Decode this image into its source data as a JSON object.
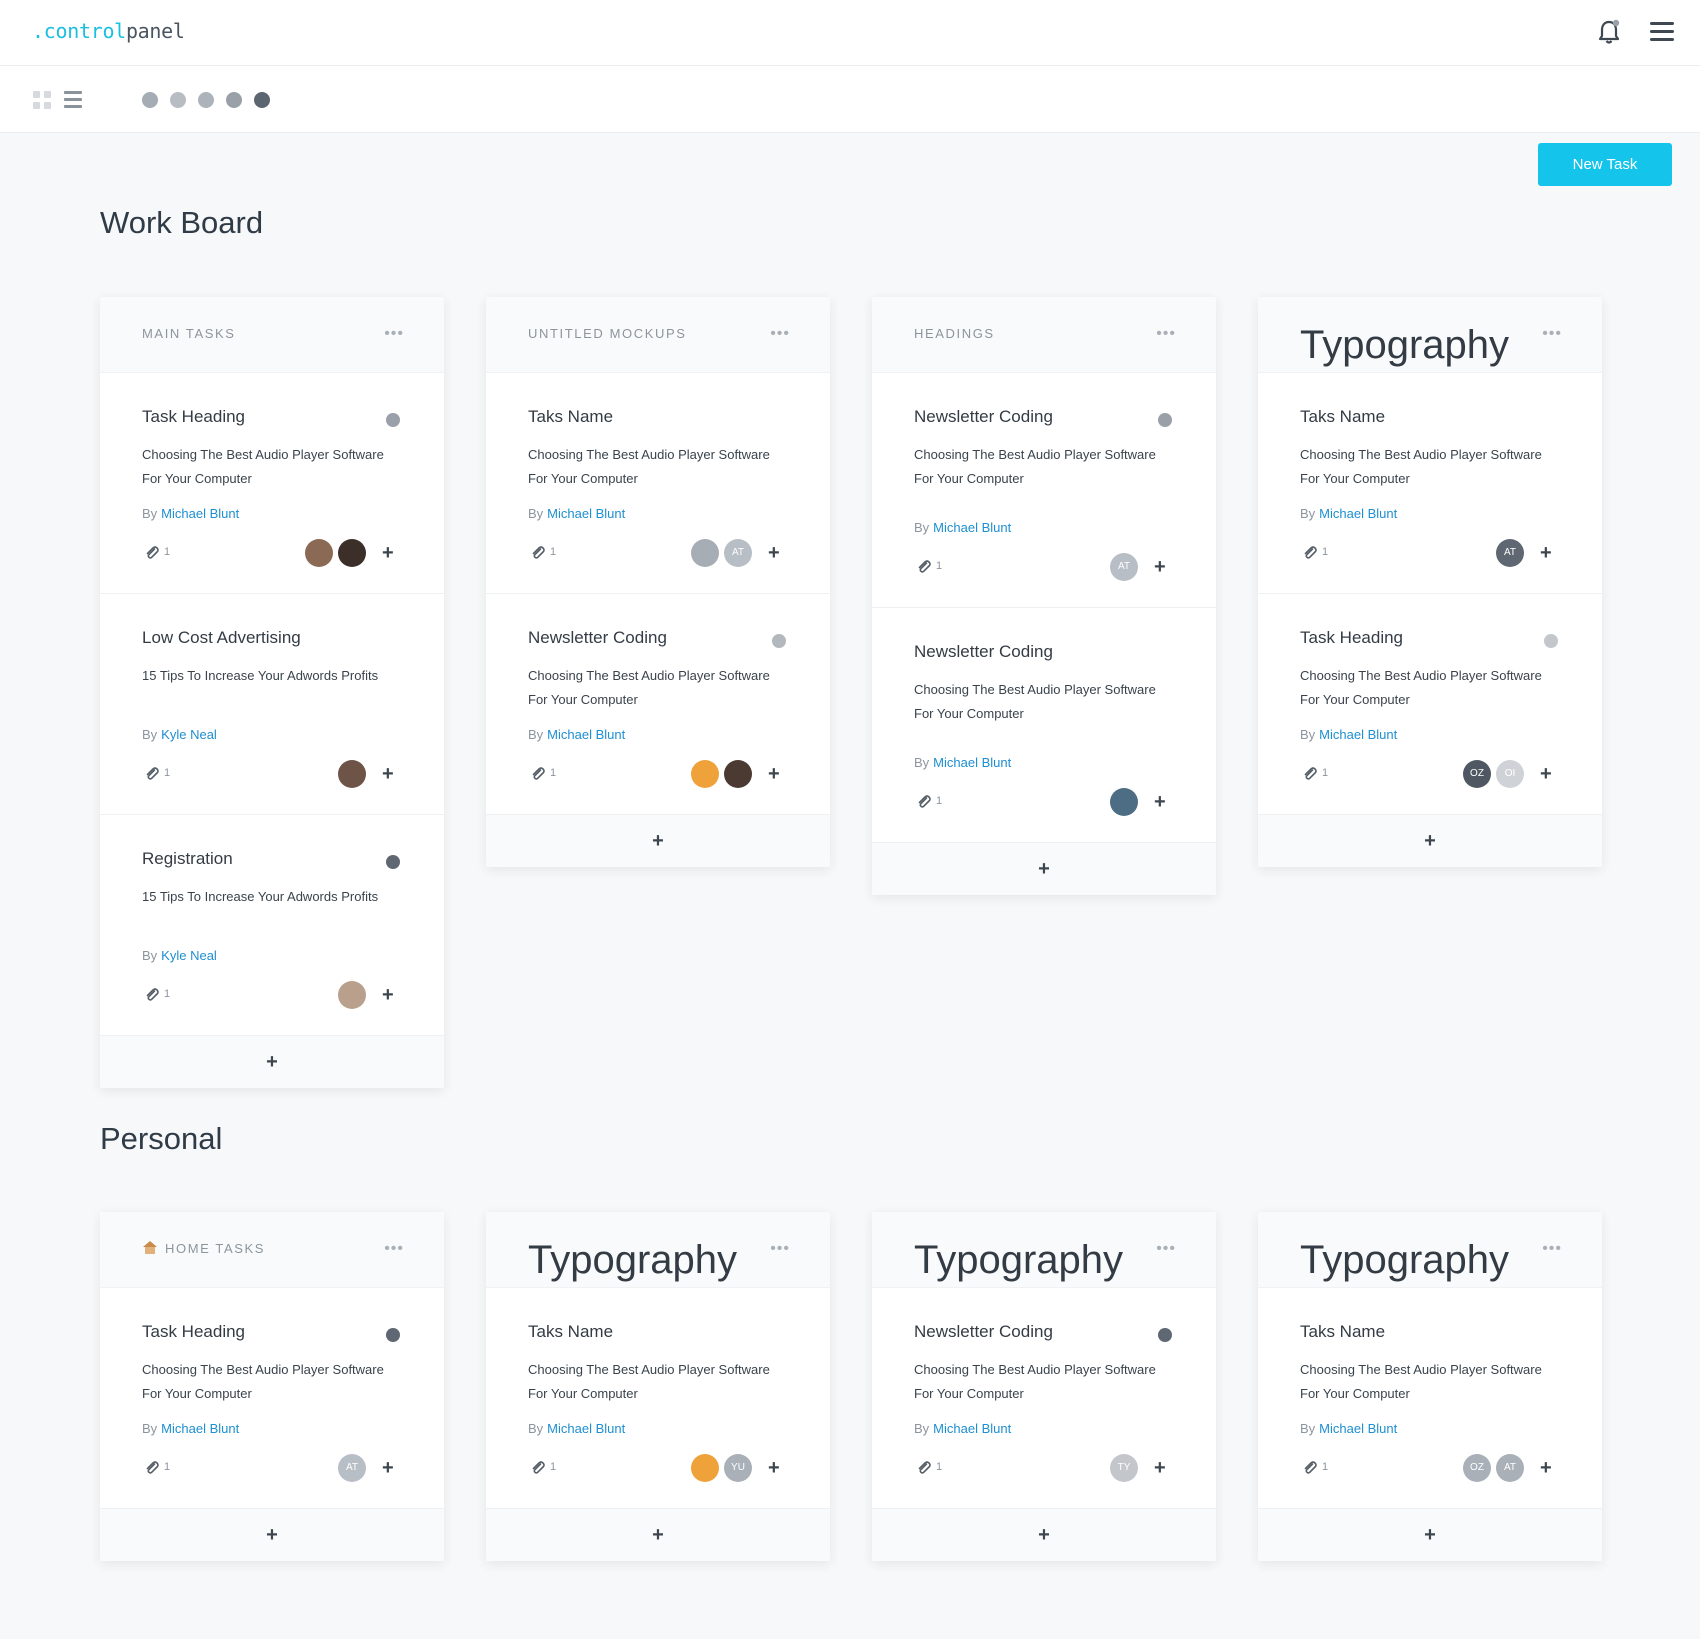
{
  "app": {
    "logo_prefix": ".control",
    "logo_suffix": "panel"
  },
  "icons": {
    "notifications": "bell-icon",
    "menu": "hamburger-icon",
    "grid_view": "grid-icon",
    "list_view": "list-icon",
    "attachment": "paperclip-icon",
    "home": "house-icon"
  },
  "toolbar": {
    "filter_dots": [
      "#a6acb3",
      "#b8bdc3",
      "#adb3ba",
      "#9aa0a8",
      "#5c6670"
    ],
    "new_task_label": "New Task"
  },
  "colors": {
    "accent": "#14c4ea",
    "link": "#1e8fd0"
  },
  "sections": [
    {
      "title": "Work Board",
      "columns": [
        {
          "title": "MAIN TASKS",
          "menu": "•••",
          "cards": [
            {
              "title": "Task Heading",
              "status": "#9aa0a7",
              "desc": "Choosing The Best Audio Player Software For Your Computer",
              "by": "By",
              "author": "Michael Blunt",
              "attachments": "1",
              "avatars": [
                {
                  "label": "",
                  "color": "#8a6a55"
                },
                {
                  "label": "",
                  "color": "#3c2e28"
                }
              ]
            },
            {
              "title": "Low Cost Advertising",
              "status": "",
              "desc": "15 Tips To Increase Your Adwords Profits",
              "by": "By",
              "author": "Kyle Neal",
              "attachments": "1",
              "avatars": [
                {
                  "label": "",
                  "color": "#6e5446"
                }
              ]
            },
            {
              "title": "Registration",
              "status": "#5f6872",
              "desc": "15 Tips To Increase Your Adwords Profits",
              "by": "By",
              "author": "Kyle Neal",
              "attachments": "1",
              "avatars": [
                {
                  "label": "",
                  "color": "#b9a08c"
                }
              ]
            }
          ],
          "add": "+"
        },
        {
          "title": "UNTITLED MOCKUPS",
          "menu": "•••",
          "cards": [
            {
              "title": "Taks Name",
              "status": "",
              "desc": "Choosing The Best Audio Player Software For Your Computer",
              "by": "By",
              "author": "Michael Blunt",
              "attachments": "1",
              "avatars": [
                {
                  "label": "",
                  "color": "#a7adb4"
                },
                {
                  "label": "AT",
                  "color": "#b8bec5"
                }
              ]
            },
            {
              "title": "Newsletter Coding",
              "status": "#b3b8be",
              "desc": "Choosing The Best Audio Player Software For Your Computer",
              "by": "By",
              "author": "Michael Blunt",
              "attachments": "1",
              "avatars": [
                {
                  "label": "",
                  "color": "#f0a23a"
                },
                {
                  "label": "",
                  "color": "#4a3a32"
                }
              ]
            }
          ],
          "add": "+"
        },
        {
          "title": "HEADINGS",
          "menu": "•••",
          "cards": [
            {
              "title": "Newsletter Coding",
              "status": "#9aa0a7",
              "desc": "Choosing The Best Audio Player Software For Your Computer",
              "by": "By",
              "author": "Michael Blunt",
              "attachments": "1",
              "avatars": [
                {
                  "label": "AT",
                  "color": "#b8bec5"
                }
              ]
            },
            {
              "title": "Newsletter Coding",
              "status": "",
              "desc": "Choosing The Best Audio Player Software For Your Computer",
              "by": "By",
              "author": "Michael Blunt",
              "attachments": "1",
              "avatars": [
                {
                  "label": "",
                  "color": "#4d6d85"
                }
              ]
            }
          ],
          "add": "+"
        },
        {
          "title": "Typography",
          "menu": "•••",
          "cards": [
            {
              "title": "Taks Name",
              "status": "",
              "desc": "Choosing The Best Audio Player Software For Your Computer",
              "by": "By",
              "author": "Michael Blunt",
              "attachments": "1",
              "avatars": [
                {
                  "label": "AT",
                  "color": "#5f6872"
                }
              ]
            },
            {
              "title": "Task Heading",
              "status": "#c3c7cc",
              "desc": "Choosing The Best Audio Player Software For Your Computer",
              "by": "By",
              "author": "Michael Blunt",
              "attachments": "1",
              "avatars": [
                {
                  "label": "OZ",
                  "color": "#4f5862"
                },
                {
                  "label": "OI",
                  "color": "#cfd3d8"
                }
              ]
            }
          ],
          "add": "+"
        }
      ]
    },
    {
      "title": "Personal",
      "columns": [
        {
          "title": "HOME TASKS",
          "menu": "•••",
          "cards": [
            {
              "title": "Task Heading",
              "status": "#5f6872",
              "desc": "Choosing The Best Audio Player Software For Your Computer",
              "by": "By",
              "author": "Michael Blunt",
              "attachments": "1",
              "avatars": [
                {
                  "label": "AT",
                  "color": "#b8bec5"
                }
              ]
            }
          ],
          "add": "+"
        },
        {
          "title": "Typography",
          "menu": "•••",
          "cards": [
            {
              "title": "Taks Name",
              "status": "",
              "desc": "Choosing The Best Audio Player Software For Your Computer",
              "by": "By",
              "author": "Michael Blunt",
              "attachments": "1",
              "avatars": [
                {
                  "label": "",
                  "color": "#f0a23a"
                },
                {
                  "label": "YU",
                  "color": "#aab0b7"
                }
              ]
            }
          ],
          "add": "+"
        },
        {
          "title": "Typography",
          "menu": "•••",
          "cards": [
            {
              "title": "Newsletter Coding",
              "status": "#5f6872",
              "desc": "Choosing The Best Audio Player Software For Your Computer",
              "by": "By",
              "author": "Michael Blunt",
              "attachments": "1",
              "avatars": [
                {
                  "label": "TY",
                  "color": "#c3c7cc"
                }
              ]
            }
          ],
          "add": "+"
        },
        {
          "title": "Typography",
          "menu": "•••",
          "cards": [
            {
              "title": "Taks Name",
              "status": "",
              "desc": "Choosing The Best Audio Player Software For Your Computer",
              "by": "By",
              "author": "Michael Blunt",
              "attachments": "1",
              "avatars": [
                {
                  "label": "OZ",
                  "color": "#aab0b7"
                },
                {
                  "label": "AT",
                  "color": "#aab0b7"
                }
              ]
            }
          ],
          "add": "+"
        }
      ]
    }
  ]
}
